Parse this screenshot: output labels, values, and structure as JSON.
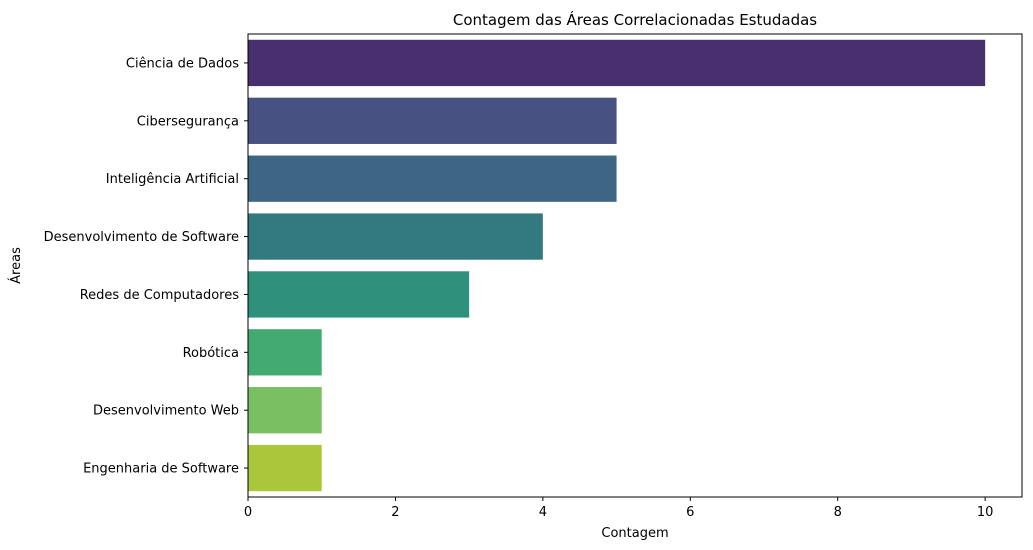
{
  "chart_data": {
    "type": "bar",
    "orientation": "horizontal",
    "title": "Contagem das Áreas Correlacionadas Estudadas",
    "xlabel": "Contagem",
    "ylabel": "Áreas",
    "categories": [
      "Ciência de Dados",
      "Cibersegurança",
      "Inteligência Artificial",
      "Desenvolvimento de Software",
      "Redes de Computadores",
      "Robótica",
      "Desenvolvimento Web",
      "Engenharia de Software"
    ],
    "values": [
      10,
      5,
      5,
      4,
      3,
      1,
      1,
      1
    ],
    "colors": [
      "#482f6e",
      "#475283",
      "#3d6684",
      "#337a80",
      "#2d917c",
      "#43aa72",
      "#78bf62",
      "#abc63b"
    ],
    "xlim": [
      0,
      10.5
    ],
    "xticks": [
      0,
      2,
      4,
      6,
      8,
      10
    ],
    "grid": false,
    "legend": "none"
  }
}
